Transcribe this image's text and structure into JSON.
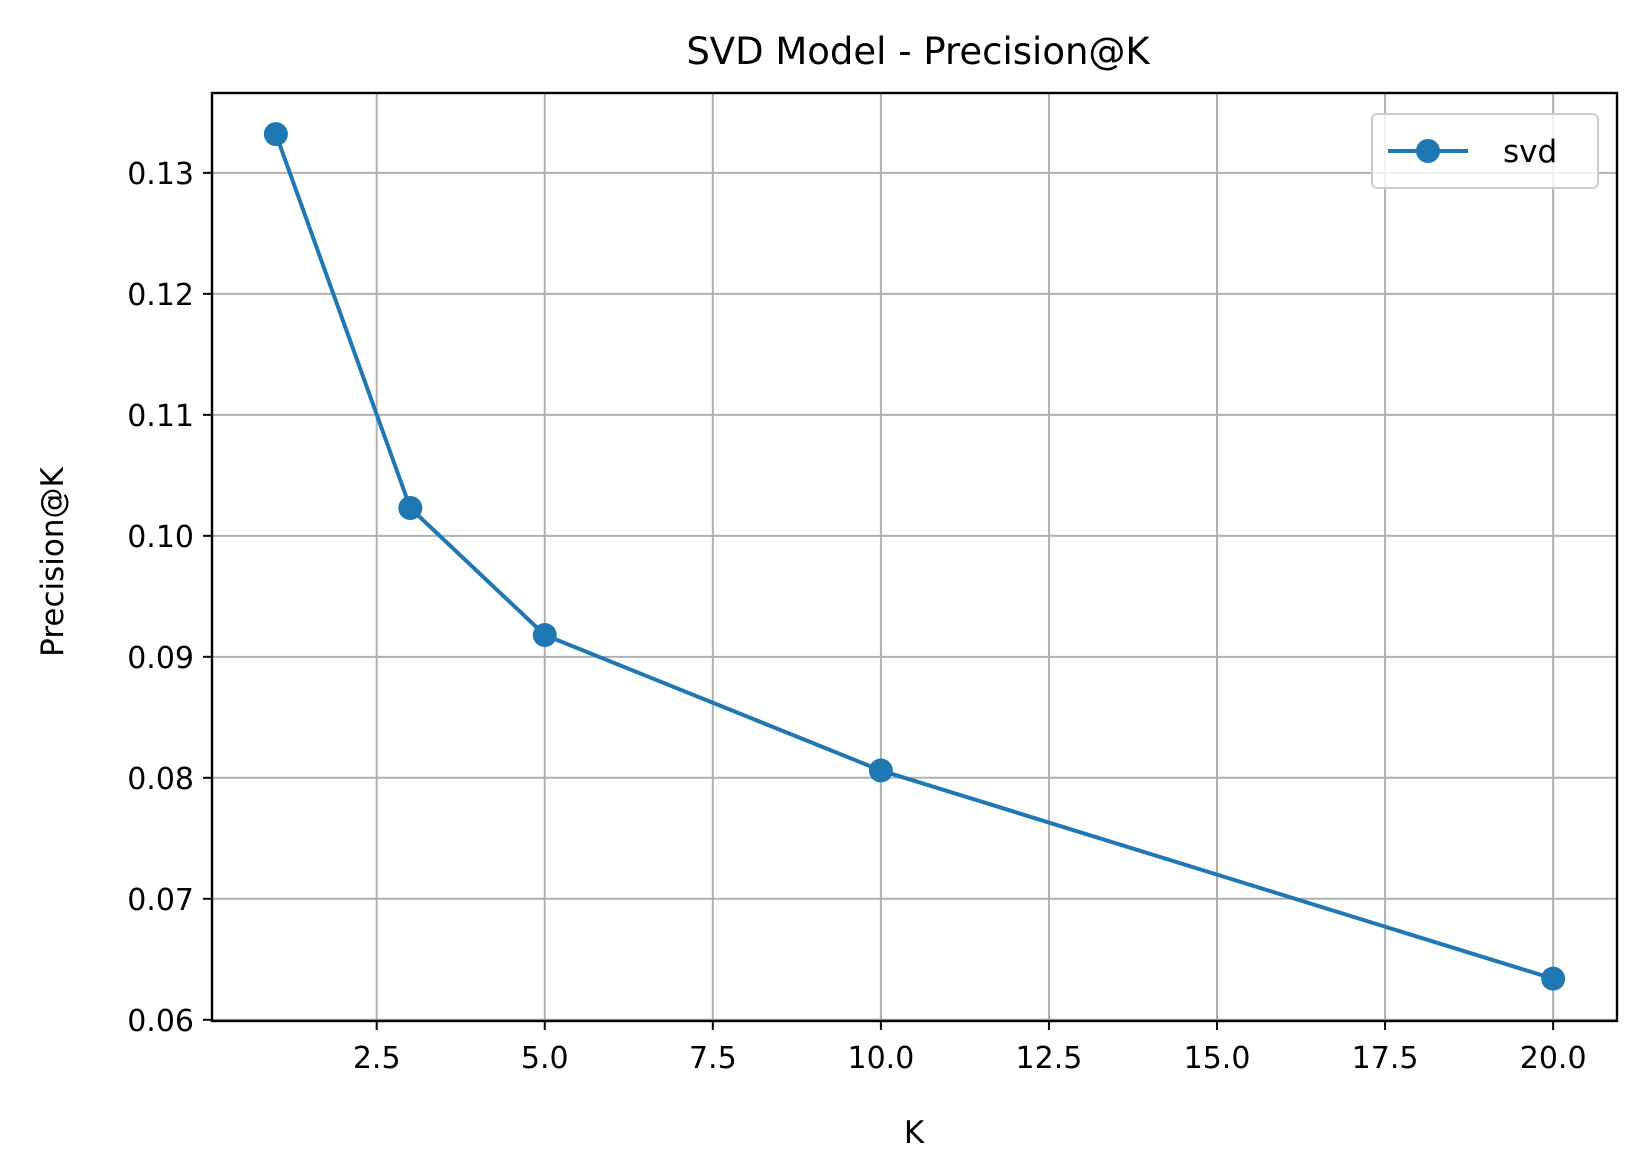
{
  "chart_data": {
    "type": "line",
    "title": "SVD Model - Precision@K",
    "xlabel": "K",
    "ylabel": "Precision@K",
    "xlim": [
      0.05,
      20.95
    ],
    "ylim": [
      0.0599,
      0.1366
    ],
    "xticks": [
      2.5,
      5.0,
      7.5,
      10.0,
      12.5,
      15.0,
      17.5,
      20.0
    ],
    "xtick_labels": [
      "2.5",
      "5.0",
      "7.5",
      "10.0",
      "12.5",
      "15.0",
      "17.5",
      "20.0"
    ],
    "yticks": [
      0.06,
      0.07,
      0.08,
      0.09,
      0.1,
      0.11,
      0.12,
      0.13
    ],
    "ytick_labels": [
      "0.06",
      "0.07",
      "0.08",
      "0.09",
      "0.10",
      "0.11",
      "0.12",
      "0.13"
    ],
    "grid": true,
    "legend_position": "top-right",
    "series": [
      {
        "name": "svd",
        "color": "#1f77b4",
        "marker": "circle",
        "x": [
          1,
          3,
          5,
          10,
          20
        ],
        "y": [
          0.1332,
          0.1023,
          0.0918,
          0.0806,
          0.0634
        ]
      }
    ]
  }
}
